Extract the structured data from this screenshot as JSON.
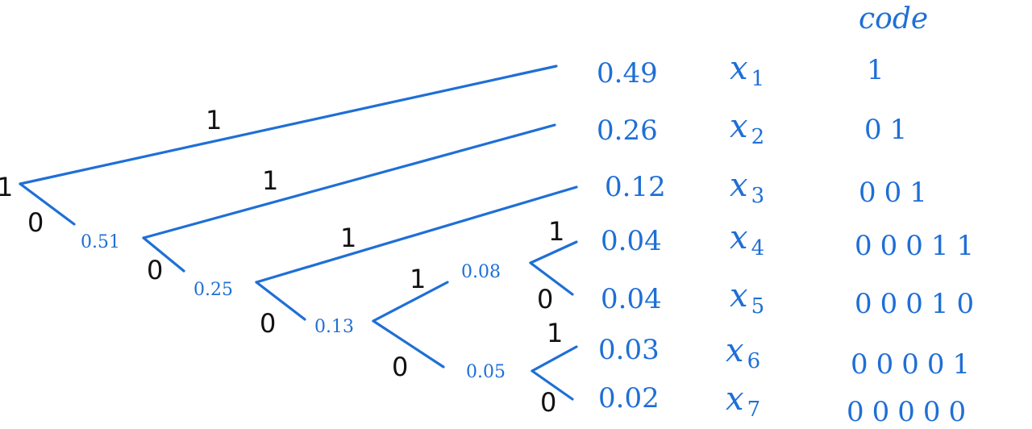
{
  "header": {
    "code_label": "code"
  },
  "root_label": "1",
  "internal_nodes": [
    {
      "id": "n051",
      "value": "0.51"
    },
    {
      "id": "n025",
      "value": "0.25"
    },
    {
      "id": "n013",
      "value": "0.13"
    },
    {
      "id": "n008",
      "value": "0.08"
    },
    {
      "id": "n005",
      "value": "0.05"
    }
  ],
  "leaves": [
    {
      "prob": "0.49",
      "symbol": "x",
      "subscript": "1",
      "code": "1"
    },
    {
      "prob": "0.26",
      "symbol": "x",
      "subscript": "2",
      "code": "01"
    },
    {
      "prob": "0.12",
      "symbol": "x",
      "subscript": "3",
      "code": "001"
    },
    {
      "prob": "0.04",
      "symbol": "x",
      "subscript": "4",
      "code": "00011"
    },
    {
      "prob": "0.04",
      "symbol": "x",
      "subscript": "5",
      "code": "00010"
    },
    {
      "prob": "0.03",
      "symbol": "x",
      "subscript": "6",
      "code": "00001"
    },
    {
      "prob": "0.02",
      "symbol": "x",
      "subscript": "7",
      "code": "00000"
    }
  ],
  "edge_bits": {
    "root_upper": "1",
    "root_lower": "0",
    "n051_upper": "1",
    "n051_lower": "0",
    "n025_upper": "1",
    "n025_lower": "0",
    "n013_upper": "1",
    "n013_lower": "0",
    "n008_upper": "1",
    "n008_lower": "0",
    "n005_upper": "1",
    "n005_lower": "0"
  }
}
